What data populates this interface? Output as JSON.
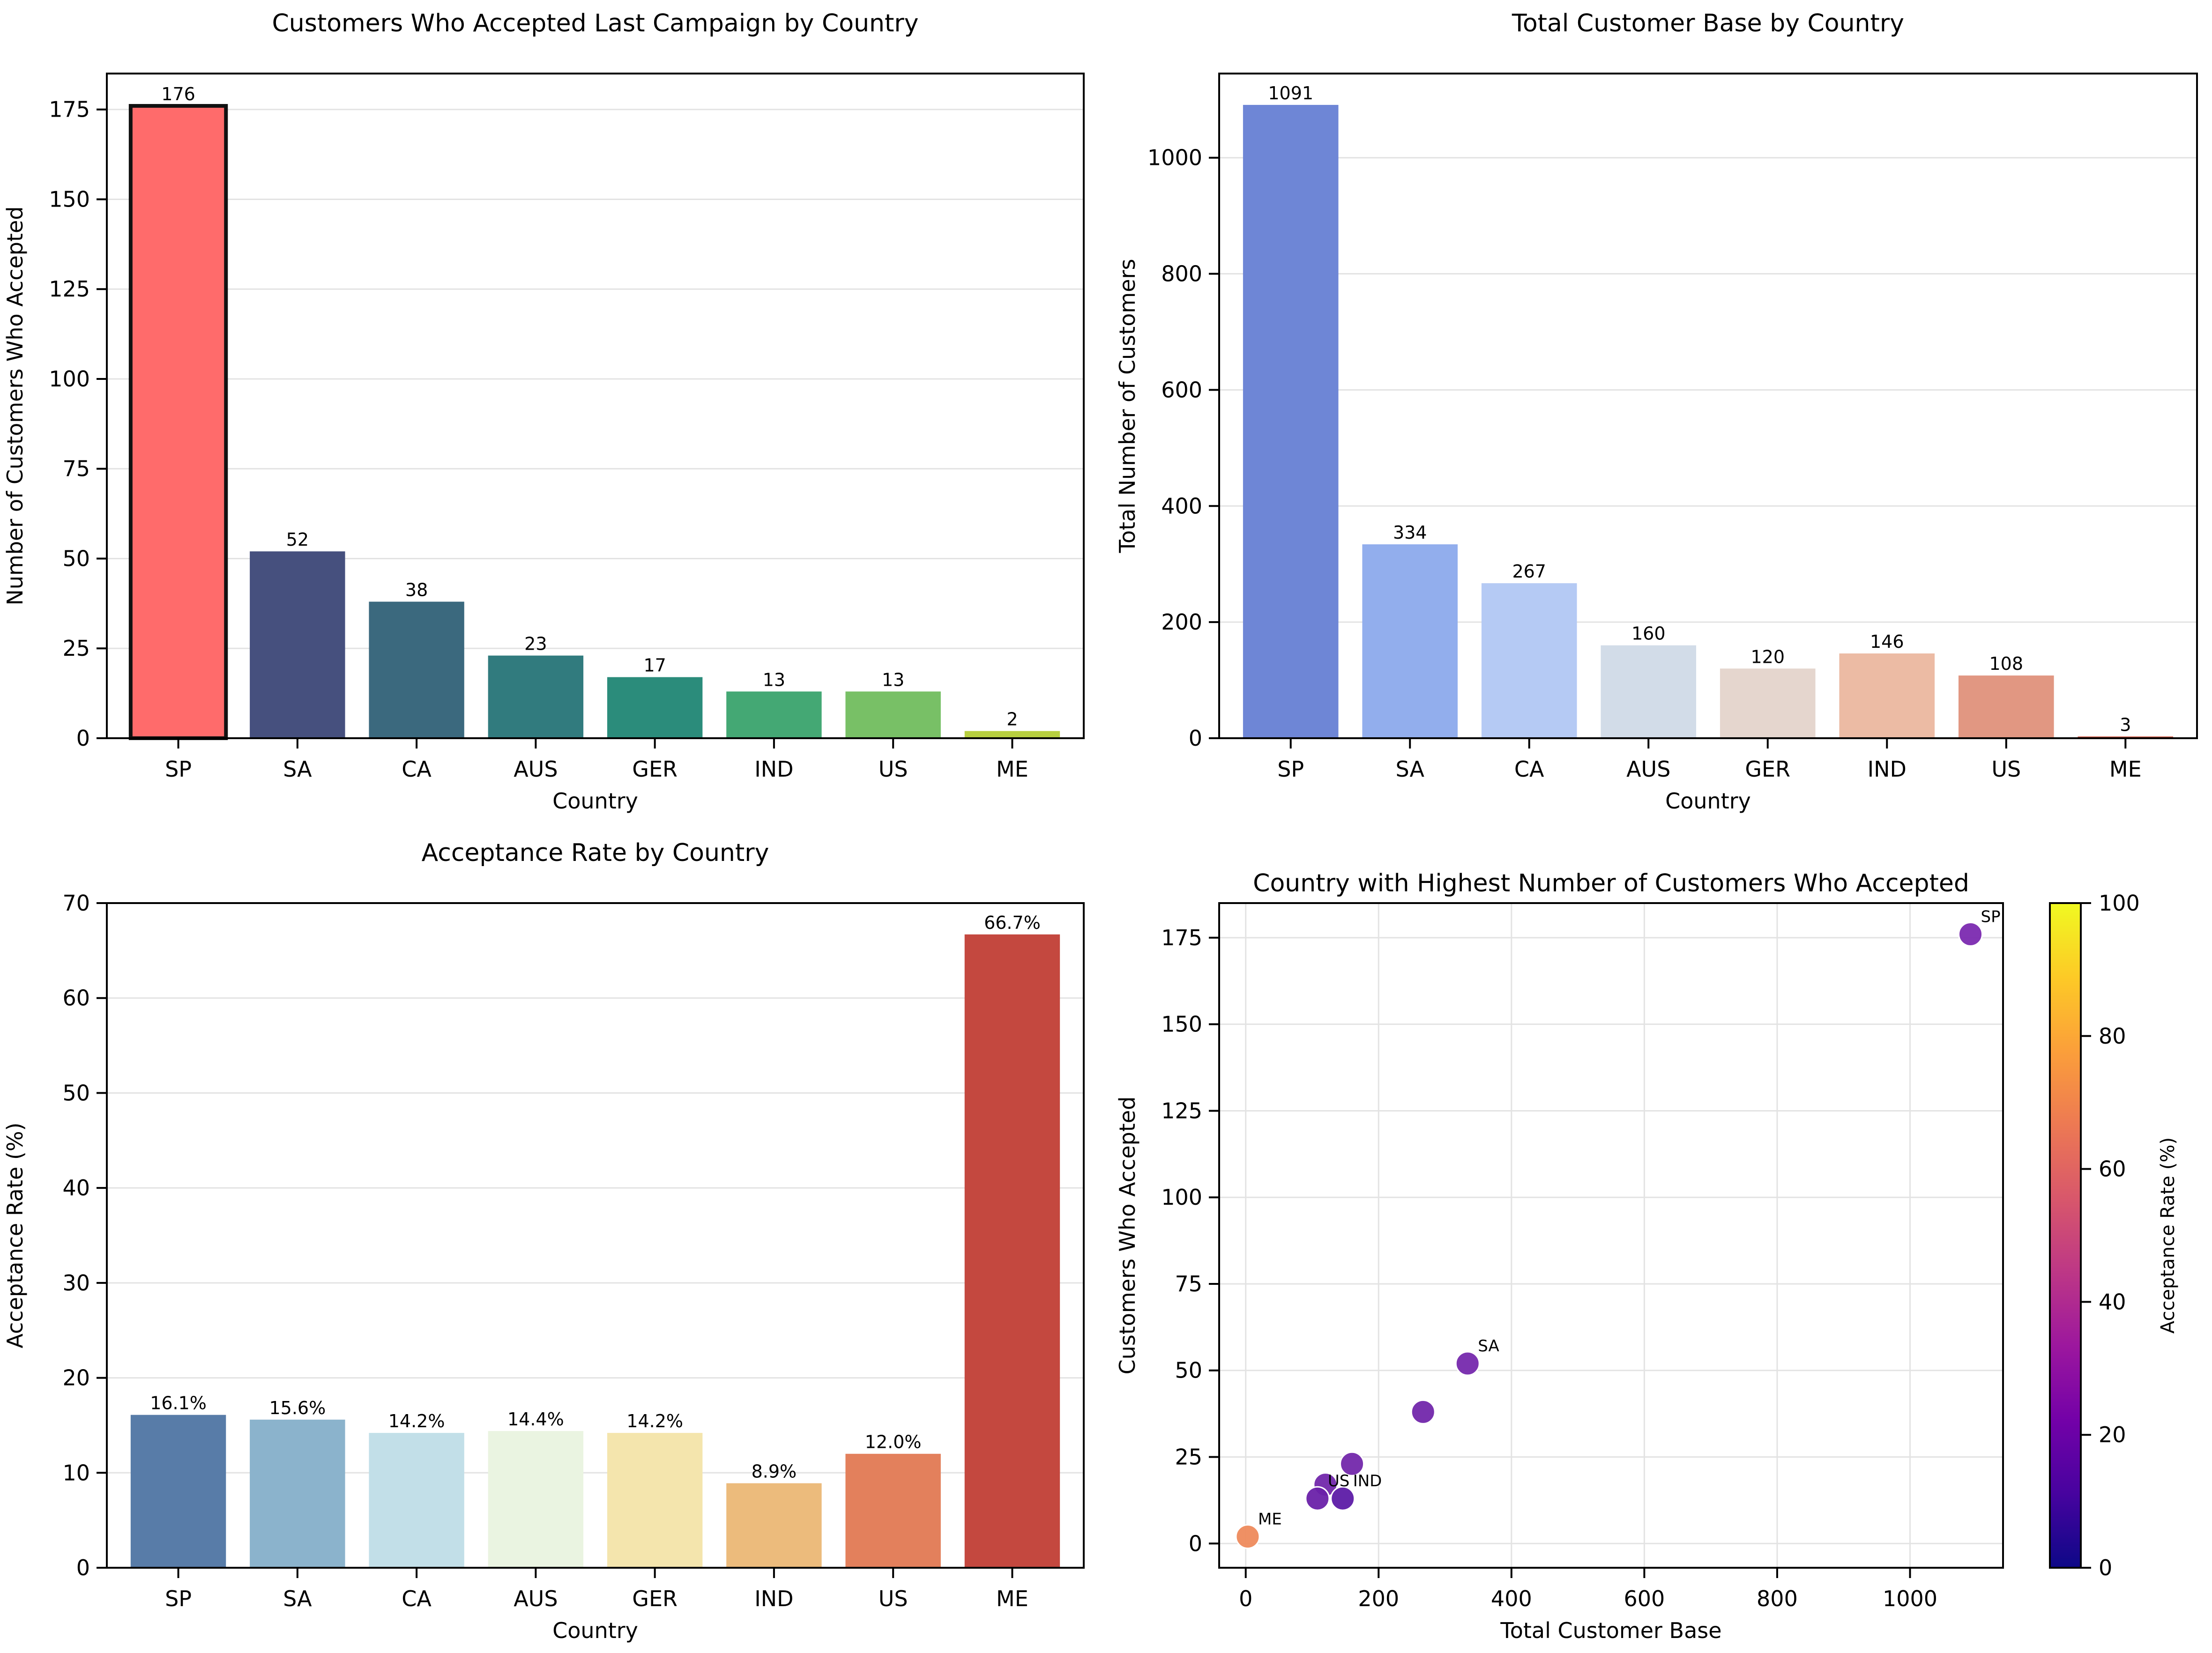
{
  "chart_data": [
    {
      "type": "bar",
      "title": "Customers Who Accepted Last Campaign by Country",
      "xlabel": "Country",
      "ylabel": "Number of Customers Who Accepted",
      "categories": [
        "SP",
        "SA",
        "CA",
        "AUS",
        "GER",
        "IND",
        "US",
        "ME"
      ],
      "values": [
        176,
        52,
        38,
        23,
        17,
        13,
        13,
        2
      ],
      "value_labels": [
        "176",
        "52",
        "38",
        "23",
        "17",
        "13",
        "13",
        "2"
      ],
      "ylim": [
        0,
        185
      ],
      "yticks": [
        0,
        25,
        50,
        75,
        100,
        125,
        150,
        175
      ],
      "colors": [
        "#ff6b6b",
        "#46507e",
        "#3b697e",
        "#317b7e",
        "#2b8c7b",
        "#44a874",
        "#78c066",
        "#b7cf3f"
      ],
      "highlight": "SP",
      "grid": "y"
    },
    {
      "type": "bar",
      "title": "Total Customer Base by Country",
      "xlabel": "Country",
      "ylabel": "Total Number of Customers",
      "categories": [
        "SP",
        "SA",
        "CA",
        "AUS",
        "GER",
        "IND",
        "US",
        "ME"
      ],
      "values": [
        1091,
        334,
        267,
        160,
        120,
        146,
        108,
        3
      ],
      "value_labels": [
        "1091",
        "334",
        "267",
        "160",
        "120",
        "146",
        "108",
        "3"
      ],
      "ylim": [
        0,
        1145
      ],
      "yticks": [
        0,
        200,
        400,
        600,
        800,
        1000
      ],
      "colors": [
        "#6e86d6",
        "#92aeed",
        "#b5caf4",
        "#d2dce8",
        "#e5d6ce",
        "#ecbba4",
        "#e19782",
        "#c9553f"
      ],
      "grid": "y"
    },
    {
      "type": "bar",
      "title": "Acceptance Rate by Country",
      "xlabel": "Country",
      "ylabel": "Acceptance Rate (%)",
      "categories": [
        "SP",
        "SA",
        "CA",
        "AUS",
        "GER",
        "IND",
        "US",
        "ME"
      ],
      "values": [
        16.1,
        15.6,
        14.2,
        14.4,
        14.2,
        8.9,
        12.0,
        66.7
      ],
      "value_labels": [
        "16.1%",
        "15.6%",
        "14.2%",
        "14.4%",
        "14.2%",
        "8.9%",
        "12.0%",
        "66.7%"
      ],
      "ylim": [
        0,
        70
      ],
      "yticks": [
        0,
        10,
        20,
        30,
        40,
        50,
        60,
        70
      ],
      "colors": [
        "#587ca8",
        "#8bb3cc",
        "#c2dfe8",
        "#eaf4e1",
        "#f4e5ad",
        "#ecbb7c",
        "#e3805c",
        "#c4483f"
      ],
      "grid": "y"
    },
    {
      "type": "scatter",
      "title": "Country with Highest Number of Customers Who Accepted",
      "xlabel": "Total Customer Base",
      "ylabel": "Customers Who Accepted",
      "xlim": [
        -40,
        1140
      ],
      "ylim": [
        -7,
        185
      ],
      "xticks": [
        0,
        200,
        400,
        600,
        800,
        1000
      ],
      "yticks": [
        0,
        25,
        50,
        75,
        100,
        125,
        150,
        175
      ],
      "points": [
        {
          "label": "SP",
          "x": 1091,
          "y": 176,
          "rate": 16.1,
          "color": "#7b2ab0"
        },
        {
          "label": "SA",
          "x": 334,
          "y": 52,
          "rate": 15.6,
          "color": "#7629ad"
        },
        {
          "label": "",
          "x": 267,
          "y": 38,
          "rate": 14.2,
          "color": "#7227ab"
        },
        {
          "label": "",
          "x": 160,
          "y": 23,
          "rate": 14.4,
          "color": "#7328ab"
        },
        {
          "label": "",
          "x": 120,
          "y": 17,
          "rate": 14.2,
          "color": "#7227ab"
        },
        {
          "label": "IND",
          "x": 146,
          "y": 13,
          "rate": 8.9,
          "color": "#5d1ba6"
        },
        {
          "label": "US",
          "x": 108,
          "y": 13,
          "rate": 12.0,
          "color": "#6a21a9"
        },
        {
          "label": "ME",
          "x": 3,
          "y": 2,
          "rate": 66.7,
          "color": "#ee8a5c"
        }
      ],
      "colorbar": {
        "label": "Acceptance Rate (%)",
        "range": [
          0,
          100
        ],
        "ticks": [
          0,
          20,
          40,
          60,
          80,
          100
        ],
        "colormap": "plasma",
        "stops": [
          "#0d0887",
          "#47039f",
          "#7301a8",
          "#9c179e",
          "#bd3786",
          "#d8576b",
          "#ed7953",
          "#fb9f3a",
          "#fdca26",
          "#f0f921"
        ]
      },
      "grid": "both"
    }
  ]
}
